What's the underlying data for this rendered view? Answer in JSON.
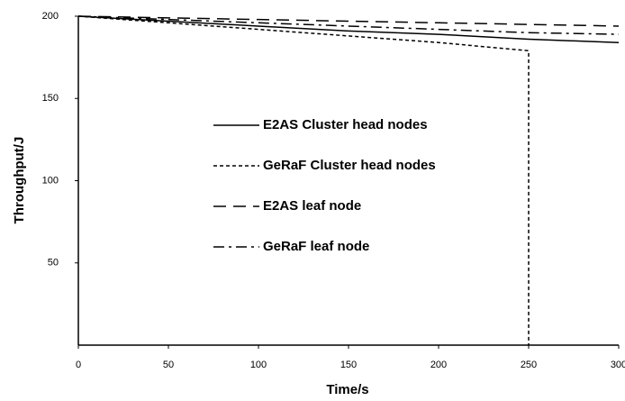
{
  "chart_data": {
    "type": "line",
    "xlabel": "Time/s",
    "ylabel": "Throughput/J",
    "xlim": [
      0,
      300
    ],
    "xticks": [
      0,
      50,
      100,
      150,
      200,
      250,
      300
    ],
    "ylim": [
      0,
      200
    ],
    "yticks": [
      50,
      100,
      150,
      200
    ],
    "series": [
      {
        "name": "E2AS Cluster head nodes",
        "color": "#000000",
        "style": "solid",
        "x": [
          0,
          50,
          100,
          150,
          200,
          250,
          300
        ],
        "values": [
          200,
          197,
          194,
          191,
          189,
          186,
          184
        ]
      },
      {
        "name": "GeRaF Cluster head nodes",
        "color": "#000000",
        "style": "dotted",
        "x": [
          0,
          50,
          100,
          150,
          200,
          250,
          250
        ],
        "values": [
          200,
          196,
          192,
          188,
          184,
          179,
          0
        ]
      },
      {
        "name": "E2AS leaf node",
        "color": "#000000",
        "style": "dashed",
        "x": [
          0,
          50,
          100,
          150,
          200,
          250,
          300
        ],
        "values": [
          200,
          199,
          198,
          197,
          196,
          195,
          194
        ]
      },
      {
        "name": "GeRaF leaf node",
        "color": "#000000",
        "style": "dashdot",
        "x": [
          0,
          50,
          100,
          150,
          200,
          250,
          300
        ],
        "values": [
          200,
          198,
          196,
          194,
          192,
          190,
          189
        ]
      }
    ]
  }
}
